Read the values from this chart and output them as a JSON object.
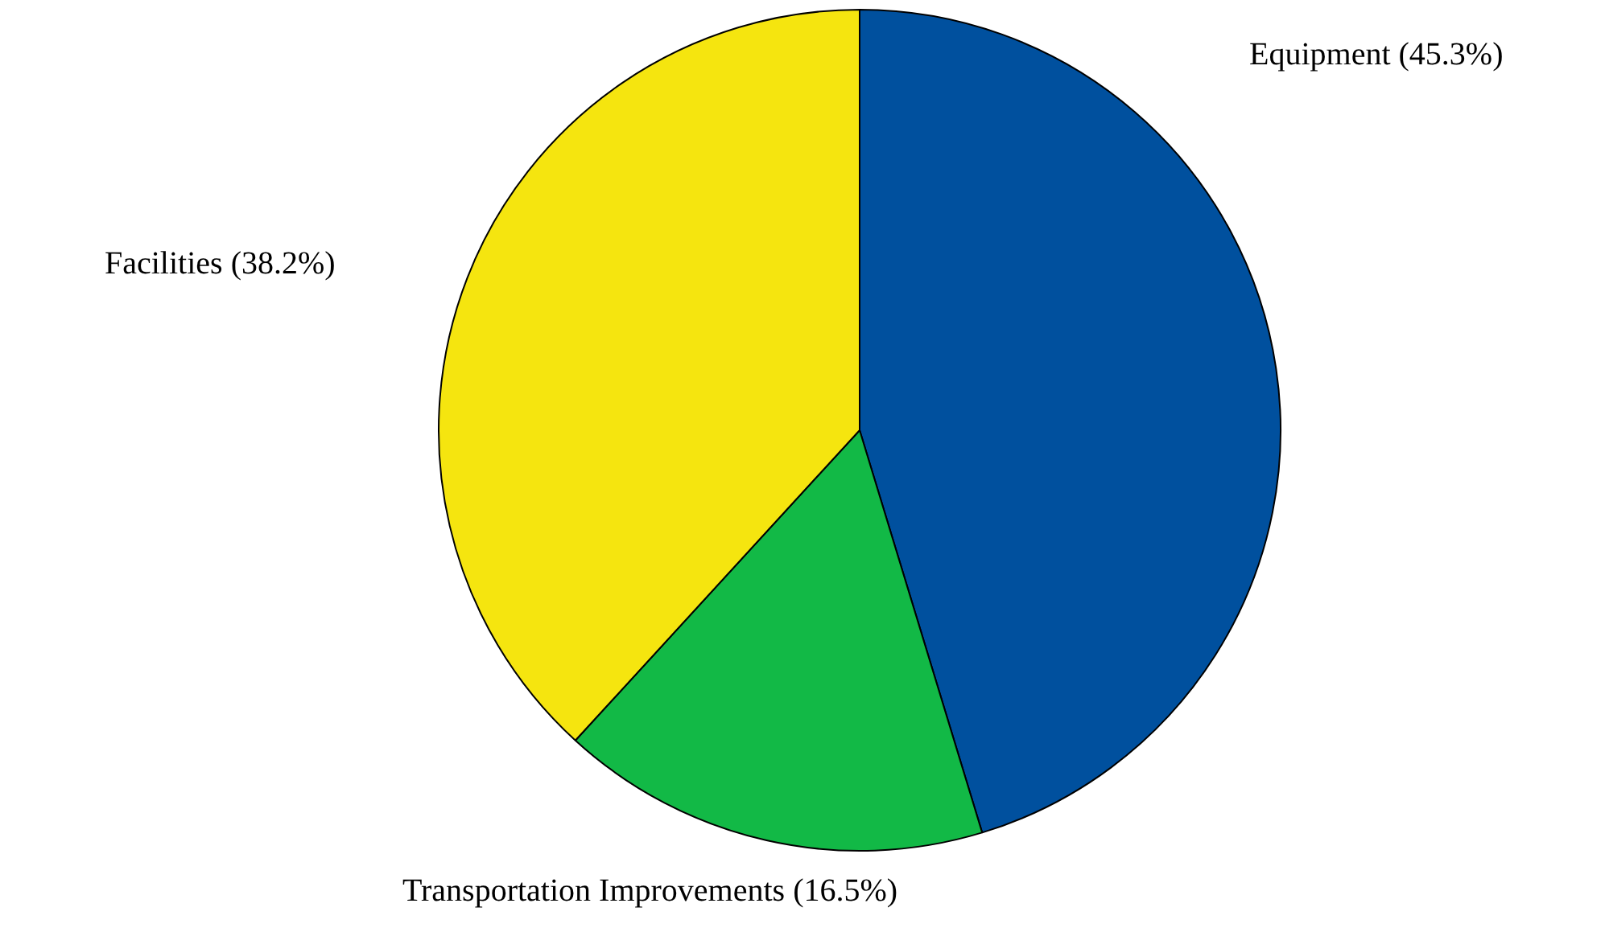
{
  "chart_data": {
    "type": "pie",
    "categories": [
      "Equipment",
      "Transportation Improvements",
      "Facilities"
    ],
    "values": [
      45.3,
      16.5,
      38.2
    ],
    "value_labels": [
      "(45.3%)",
      "(16.5%)",
      "(38.2%)"
    ],
    "colors": [
      "#00509e",
      "#12b946",
      "#f5e50f"
    ],
    "legend": false
  }
}
